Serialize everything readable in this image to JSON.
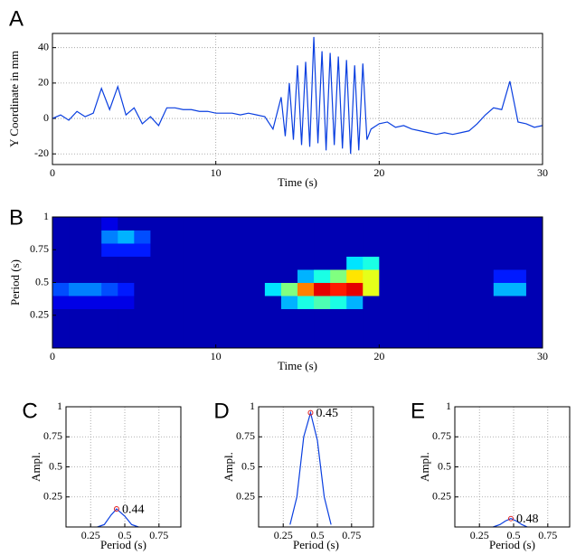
{
  "chart_data": [
    {
      "type": "line",
      "panel_label": "A",
      "xlabel": "Time (s)",
      "ylabel": "Y Coordinate in mm",
      "color": "#0a3fe0",
      "grid": true,
      "x": [
        0,
        0.5,
        1,
        1.5,
        2,
        2.5,
        3,
        3.5,
        4,
        4.5,
        5,
        5.5,
        6,
        6.5,
        7,
        7.5,
        8,
        8.5,
        9,
        9.5,
        10,
        10.5,
        11,
        11.5,
        12,
        12.5,
        13,
        13.5,
        14,
        14.25,
        14.5,
        14.75,
        15,
        15.25,
        15.5,
        15.75,
        16,
        16.25,
        16.5,
        16.75,
        17,
        17.25,
        17.5,
        17.75,
        18,
        18.25,
        18.5,
        18.75,
        19,
        19.25,
        19.5,
        20,
        20.5,
        21,
        21.5,
        22,
        22.5,
        23,
        23.5,
        24,
        24.5,
        25,
        25.5,
        26,
        26.5,
        27,
        27.5,
        28,
        28.5,
        29,
        29.5,
        30
      ],
      "values": [
        0,
        2,
        -1,
        4,
        1,
        3,
        17,
        5,
        18,
        2,
        6,
        -3,
        1,
        -4,
        6,
        6,
        5,
        5,
        4,
        4,
        3,
        3,
        3,
        2,
        3,
        2,
        1,
        -6,
        12,
        -10,
        20,
        -12,
        30,
        -15,
        32,
        -16,
        46,
        -14,
        38,
        -18,
        37,
        -15,
        35,
        -17,
        33,
        -20,
        30,
        -18,
        31,
        -12,
        -6,
        -3,
        -2,
        -5,
        -4,
        -6,
        -7,
        -8,
        -9,
        -8,
        -9,
        -8,
        -7,
        -3,
        2,
        6,
        5,
        21,
        -2,
        -3,
        -5,
        -4
      ],
      "xlim": [
        0,
        30
      ],
      "xticks": [
        0,
        10,
        20,
        30
      ],
      "ylim": [
        -26,
        48
      ],
      "yticks": [
        -20,
        0,
        20,
        40
      ]
    },
    {
      "type": "heatmap",
      "panel_label": "B",
      "xlabel": "Time (s)",
      "ylabel": "Period (s)",
      "colormap": "jet",
      "x": [
        0.5,
        1.5,
        2.5,
        3.5,
        4.5,
        5.5,
        6.5,
        7.5,
        8.5,
        9.5,
        10.5,
        11.5,
        12.5,
        13.5,
        14.5,
        15.5,
        16.5,
        17.5,
        18.5,
        19.5,
        20.5,
        21.5,
        22.5,
        23.5,
        24.5,
        25.5,
        26.5,
        27.5,
        28.5,
        29.5
      ],
      "y": [
        0.05,
        0.15,
        0.25,
        0.35,
        0.45,
        0.55,
        0.65,
        0.75,
        0.85,
        0.95
      ],
      "z": [
        [
          0.05,
          0.05,
          0.05,
          0.05,
          0.05,
          0.05,
          0.05,
          0.05,
          0.05,
          0.05,
          0.05,
          0.05,
          0.05,
          0.05,
          0.05,
          0.05,
          0.05,
          0.05,
          0.05,
          0.05,
          0.05,
          0.05,
          0.05,
          0.05,
          0.05,
          0.05,
          0.05,
          0.05,
          0.05,
          0.05
        ],
        [
          0.05,
          0.05,
          0.05,
          0.05,
          0.05,
          0.05,
          0.05,
          0.05,
          0.05,
          0.05,
          0.05,
          0.05,
          0.05,
          0.05,
          0.05,
          0.05,
          0.05,
          0.05,
          0.05,
          0.05,
          0.05,
          0.05,
          0.05,
          0.05,
          0.05,
          0.05,
          0.05,
          0.05,
          0.05,
          0.05
        ],
        [
          0.05,
          0.05,
          0.05,
          0.05,
          0.05,
          0.05,
          0.05,
          0.05,
          0.05,
          0.05,
          0.05,
          0.05,
          0.05,
          0.05,
          0.05,
          0.05,
          0.05,
          0.05,
          0.05,
          0.05,
          0.05,
          0.05,
          0.05,
          0.05,
          0.05,
          0.05,
          0.05,
          0.05,
          0.05,
          0.05
        ],
        [
          0.1,
          0.1,
          0.1,
          0.1,
          0.1,
          0.05,
          0.05,
          0.05,
          0.05,
          0.05,
          0.05,
          0.05,
          0.05,
          0.05,
          0.3,
          0.4,
          0.45,
          0.4,
          0.3,
          0.05,
          0.05,
          0.05,
          0.05,
          0.05,
          0.05,
          0.05,
          0.05,
          0.05,
          0.05,
          0.05
        ],
        [
          0.2,
          0.25,
          0.25,
          0.2,
          0.15,
          0.05,
          0.05,
          0.05,
          0.05,
          0.05,
          0.05,
          0.05,
          0.05,
          0.35,
          0.5,
          0.75,
          0.9,
          0.85,
          0.9,
          0.6,
          0.05,
          0.05,
          0.05,
          0.05,
          0.05,
          0.05,
          0.05,
          0.3,
          0.3,
          0.05
        ],
        [
          0.05,
          0.05,
          0.05,
          0.05,
          0.05,
          0.05,
          0.05,
          0.05,
          0.05,
          0.05,
          0.05,
          0.05,
          0.05,
          0.05,
          0.05,
          0.3,
          0.4,
          0.5,
          0.65,
          0.6,
          0.05,
          0.05,
          0.05,
          0.05,
          0.05,
          0.05,
          0.05,
          0.15,
          0.15,
          0.05
        ],
        [
          0.05,
          0.05,
          0.05,
          0.05,
          0.05,
          0.05,
          0.05,
          0.05,
          0.05,
          0.05,
          0.05,
          0.05,
          0.05,
          0.05,
          0.05,
          0.05,
          0.05,
          0.05,
          0.35,
          0.4,
          0.05,
          0.05,
          0.05,
          0.05,
          0.05,
          0.05,
          0.05,
          0.05,
          0.05,
          0.05
        ],
        [
          0.05,
          0.05,
          0.05,
          0.15,
          0.15,
          0.15,
          0.05,
          0.05,
          0.05,
          0.05,
          0.05,
          0.05,
          0.05,
          0.05,
          0.05,
          0.05,
          0.05,
          0.05,
          0.05,
          0.05,
          0.05,
          0.05,
          0.05,
          0.05,
          0.05,
          0.05,
          0.05,
          0.05,
          0.05,
          0.05
        ],
        [
          0.05,
          0.05,
          0.05,
          0.25,
          0.3,
          0.2,
          0.05,
          0.05,
          0.05,
          0.05,
          0.05,
          0.05,
          0.05,
          0.05,
          0.05,
          0.05,
          0.05,
          0.05,
          0.05,
          0.05,
          0.05,
          0.05,
          0.05,
          0.05,
          0.05,
          0.05,
          0.05,
          0.05,
          0.05,
          0.05
        ],
        [
          0.05,
          0.05,
          0.05,
          0.1,
          0.05,
          0.05,
          0.05,
          0.05,
          0.05,
          0.05,
          0.05,
          0.05,
          0.05,
          0.05,
          0.05,
          0.05,
          0.05,
          0.05,
          0.05,
          0.05,
          0.05,
          0.05,
          0.05,
          0.05,
          0.05,
          0.05,
          0.05,
          0.05,
          0.05,
          0.05
        ]
      ],
      "xlim": [
        0,
        30
      ],
      "xticks": [
        0,
        10,
        20,
        30
      ],
      "ylim": [
        0,
        1
      ],
      "yticks": [
        0.25,
        0.5,
        0.75,
        1
      ]
    },
    {
      "type": "line",
      "panel_label": "C",
      "xlabel": "Period (s)",
      "ylabel": "Ampl.",
      "color": "#0a3fe0",
      "grid": true,
      "x": [
        0.3,
        0.35,
        0.4,
        0.44,
        0.5,
        0.55,
        0.6
      ],
      "values": [
        0,
        0.02,
        0.1,
        0.15,
        0.09,
        0.02,
        0
      ],
      "peak": {
        "x": 0.44,
        "y": 0.15
      },
      "peak_color": "#e02020",
      "xlim": [
        0.07,
        0.91
      ],
      "xticks": [
        0.25,
        0.5,
        0.75
      ],
      "ylim": [
        0,
        1
      ],
      "yticks": [
        0.25,
        0.5,
        0.75,
        1
      ]
    },
    {
      "type": "line",
      "panel_label": "D",
      "xlabel": "Period (s)",
      "ylabel": "Ampl.",
      "color": "#0a3fe0",
      "grid": true,
      "x": [
        0.3,
        0.35,
        0.4,
        0.45,
        0.5,
        0.55,
        0.6
      ],
      "values": [
        0.02,
        0.25,
        0.75,
        0.95,
        0.72,
        0.25,
        0.02
      ],
      "peak": {
        "x": 0.45,
        "y": 0.95
      },
      "peak_color": "#e02020",
      "xlim": [
        0.07,
        0.91
      ],
      "xticks": [
        0.25,
        0.5,
        0.75
      ],
      "ylim": [
        0,
        1
      ],
      "yticks": [
        0.25,
        0.5,
        0.75,
        1
      ]
    },
    {
      "type": "line",
      "panel_label": "E",
      "xlabel": "Period (s)",
      "ylabel": "Ampl.",
      "color": "#0a3fe0",
      "grid": true,
      "x": [
        0.35,
        0.4,
        0.44,
        0.48,
        0.52,
        0.56,
        0.6
      ],
      "values": [
        0,
        0.02,
        0.05,
        0.07,
        0.05,
        0.02,
        0
      ],
      "peak": {
        "x": 0.48,
        "y": 0.07
      },
      "peak_color": "#e02020",
      "xlim": [
        0.07,
        0.91
      ],
      "xticks": [
        0.25,
        0.5,
        0.75
      ],
      "ylim": [
        0,
        1
      ],
      "yticks": [
        0.25,
        0.5,
        0.75,
        1
      ]
    }
  ]
}
